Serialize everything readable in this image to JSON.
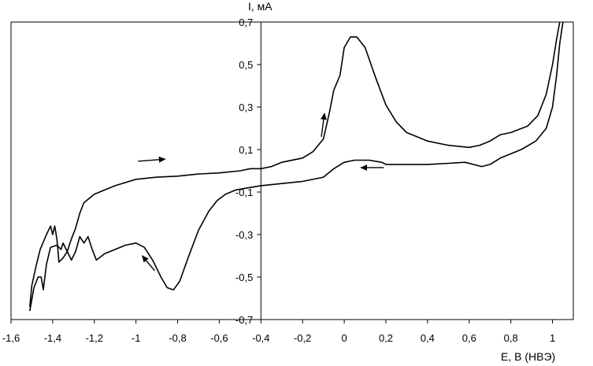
{
  "chart_data": {
    "type": "line",
    "title": "",
    "xlabel": "E, В (НВЭ)",
    "ylabel": "I, мА",
    "xlim": [
      -1.6,
      1.1
    ],
    "ylim": [
      -0.7,
      0.7
    ],
    "grid": false,
    "legend": "none",
    "x_ticks": [
      {
        "value": -1.6,
        "label": "-1,6"
      },
      {
        "value": -1.4,
        "label": "-1,4"
      },
      {
        "value": -1.2,
        "label": "-1,2"
      },
      {
        "value": -1.0,
        "label": "-1"
      },
      {
        "value": -0.8,
        "label": "-0,8"
      },
      {
        "value": -0.6,
        "label": "-0,6"
      },
      {
        "value": -0.4,
        "label": "-0,4"
      },
      {
        "value": -0.2,
        "label": "-0,2"
      },
      {
        "value": 0.0,
        "label": "0"
      },
      {
        "value": 0.2,
        "label": "0,2"
      },
      {
        "value": 0.4,
        "label": "0,4"
      },
      {
        "value": 0.6,
        "label": "0,6"
      },
      {
        "value": 0.8,
        "label": "0,8"
      },
      {
        "value": 1.0,
        "label": "1"
      }
    ],
    "y_ticks": [
      {
        "value": 0.7,
        "label": "0,7"
      },
      {
        "value": 0.5,
        "label": "0,5"
      },
      {
        "value": 0.3,
        "label": "0,3"
      },
      {
        "value": 0.1,
        "label": "0,1"
      },
      {
        "value": -0.1,
        "label": "-0,1"
      },
      {
        "value": -0.3,
        "label": "-0,3"
      },
      {
        "value": -0.5,
        "label": "-0,5"
      },
      {
        "value": -0.7,
        "label": "-0,7"
      }
    ],
    "series": [
      {
        "stroke": "#000000",
        "points": [
          [
            -0.4,
            -0.07
          ],
          [
            -0.3,
            -0.06
          ],
          [
            -0.2,
            -0.05
          ],
          [
            -0.1,
            -0.03
          ],
          [
            -0.05,
            0.01
          ],
          [
            0.0,
            0.04
          ],
          [
            0.05,
            0.05
          ],
          [
            0.12,
            0.05
          ],
          [
            0.18,
            0.04
          ],
          [
            0.2,
            0.03
          ],
          [
            0.3,
            0.03
          ],
          [
            0.4,
            0.03
          ],
          [
            0.5,
            0.035
          ],
          [
            0.58,
            0.04
          ],
          [
            0.62,
            0.03
          ],
          [
            0.66,
            0.02
          ],
          [
            0.7,
            0.03
          ],
          [
            0.75,
            0.06
          ],
          [
            0.85,
            0.1
          ],
          [
            0.92,
            0.14
          ],
          [
            0.97,
            0.2
          ],
          [
            1.0,
            0.3
          ],
          [
            1.02,
            0.45
          ],
          [
            1.035,
            0.6
          ],
          [
            1.05,
            0.7
          ]
        ]
      },
      {
        "stroke": "#000000",
        "points": [
          [
            -0.4,
            0.01
          ],
          [
            -0.35,
            0.02
          ],
          [
            -0.3,
            0.04
          ],
          [
            -0.2,
            0.06
          ],
          [
            -0.15,
            0.09
          ],
          [
            -0.1,
            0.15
          ],
          [
            -0.07,
            0.28
          ],
          [
            -0.05,
            0.38
          ],
          [
            -0.02,
            0.45
          ],
          [
            0.0,
            0.58
          ],
          [
            0.03,
            0.63
          ],
          [
            0.06,
            0.63
          ],
          [
            0.1,
            0.58
          ],
          [
            0.15,
            0.44
          ],
          [
            0.2,
            0.31
          ],
          [
            0.25,
            0.23
          ],
          [
            0.3,
            0.18
          ],
          [
            0.4,
            0.14
          ],
          [
            0.5,
            0.12
          ],
          [
            0.6,
            0.11
          ],
          [
            0.65,
            0.12
          ],
          [
            0.7,
            0.14
          ],
          [
            0.75,
            0.17
          ],
          [
            0.8,
            0.18
          ],
          [
            0.88,
            0.21
          ],
          [
            0.93,
            0.26
          ],
          [
            0.97,
            0.36
          ],
          [
            1.0,
            0.5
          ],
          [
            1.02,
            0.62
          ],
          [
            1.035,
            0.7
          ]
        ]
      },
      {
        "stroke": "#000000",
        "points": [
          [
            -1.51,
            -0.66
          ],
          [
            -1.49,
            -0.55
          ],
          [
            -1.47,
            -0.5
          ],
          [
            -1.455,
            -0.5
          ],
          [
            -1.445,
            -0.56
          ],
          [
            -1.44,
            -0.52
          ],
          [
            -1.43,
            -0.44
          ],
          [
            -1.41,
            -0.36
          ],
          [
            -1.38,
            -0.35
          ],
          [
            -1.36,
            -0.37
          ],
          [
            -1.35,
            -0.34
          ],
          [
            -1.33,
            -0.38
          ],
          [
            -1.31,
            -0.42
          ],
          [
            -1.29,
            -0.38
          ],
          [
            -1.27,
            -0.31
          ],
          [
            -1.25,
            -0.34
          ],
          [
            -1.23,
            -0.31
          ],
          [
            -1.21,
            -0.37
          ],
          [
            -1.19,
            -0.42
          ],
          [
            -1.15,
            -0.39
          ],
          [
            -1.1,
            -0.37
          ],
          [
            -1.05,
            -0.35
          ],
          [
            -1.0,
            -0.34
          ],
          [
            -0.96,
            -0.36
          ],
          [
            -0.92,
            -0.42
          ],
          [
            -0.88,
            -0.5
          ],
          [
            -0.85,
            -0.55
          ],
          [
            -0.82,
            -0.56
          ],
          [
            -0.79,
            -0.52
          ],
          [
            -0.75,
            -0.41
          ],
          [
            -0.7,
            -0.28
          ],
          [
            -0.65,
            -0.19
          ],
          [
            -0.61,
            -0.14
          ],
          [
            -0.57,
            -0.11
          ],
          [
            -0.52,
            -0.09
          ],
          [
            -0.46,
            -0.08
          ],
          [
            -0.4,
            -0.07
          ]
        ]
      },
      {
        "stroke": "#000000",
        "points": [
          [
            -1.51,
            -0.64
          ],
          [
            -1.5,
            -0.54
          ],
          [
            -1.48,
            -0.45
          ],
          [
            -1.46,
            -0.37
          ],
          [
            -1.43,
            -0.3
          ],
          [
            -1.41,
            -0.26
          ],
          [
            -1.4,
            -0.3
          ],
          [
            -1.39,
            -0.26
          ],
          [
            -1.38,
            -0.32
          ],
          [
            -1.375,
            -0.37
          ],
          [
            -1.37,
            -0.43
          ],
          [
            -1.35,
            -0.41
          ],
          [
            -1.33,
            -0.38
          ],
          [
            -1.31,
            -0.32
          ],
          [
            -1.29,
            -0.27
          ],
          [
            -1.27,
            -0.2
          ],
          [
            -1.25,
            -0.15
          ],
          [
            -1.2,
            -0.11
          ],
          [
            -1.1,
            -0.07
          ],
          [
            -1.0,
            -0.04
          ],
          [
            -0.9,
            -0.03
          ],
          [
            -0.8,
            -0.025
          ],
          [
            -0.7,
            -0.015
          ],
          [
            -0.6,
            -0.01
          ],
          [
            -0.5,
            0.0
          ],
          [
            -0.45,
            0.01
          ],
          [
            -0.4,
            0.01
          ]
        ]
      }
    ],
    "annotations": [
      {
        "type": "arrow",
        "from": [
          -0.99,
          0.045
        ],
        "to": [
          -0.86,
          0.055
        ]
      },
      {
        "type": "arrow",
        "from": [
          -0.91,
          -0.47
        ],
        "to": [
          -0.97,
          -0.4
        ]
      },
      {
        "type": "arrow",
        "from": [
          -0.11,
          0.16
        ],
        "to": [
          -0.095,
          0.27
        ]
      },
      {
        "type": "arrow",
        "from": [
          0.19,
          0.015
        ],
        "to": [
          0.08,
          0.015
        ]
      }
    ]
  }
}
